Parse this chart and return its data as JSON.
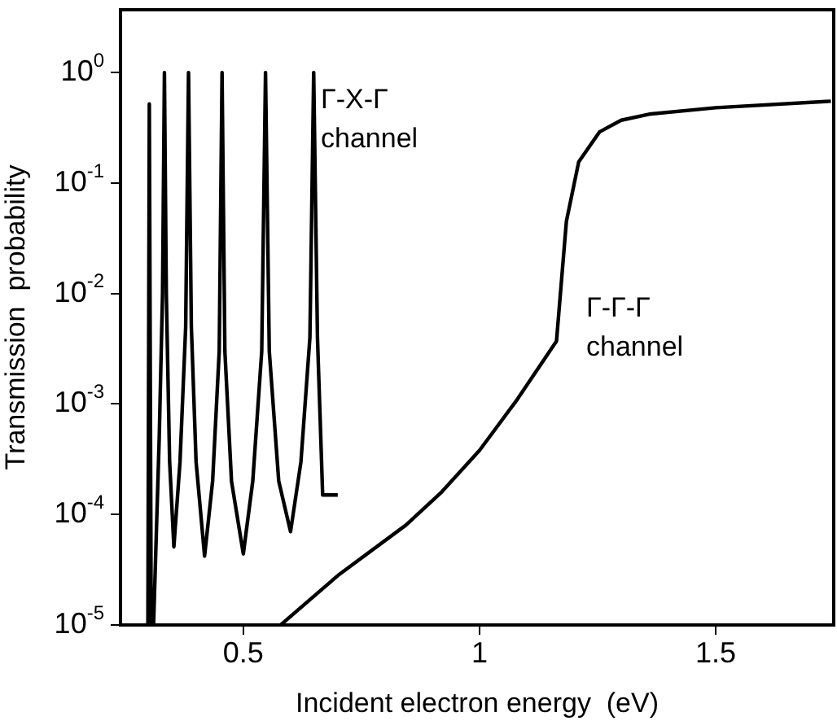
{
  "chart_data": {
    "type": "line",
    "xlabel": "Incident electron energy  (eV)",
    "ylabel": "Transmission  probability",
    "log": "y",
    "grid": false,
    "legend": false,
    "marker": "none",
    "line_style": "solid",
    "xlim": [
      0.24,
      1.75
    ],
    "xticks": [
      0.5,
      1.0,
      1.5
    ],
    "ylim": [
      1e-05,
      3.7
    ],
    "yticks": [
      {
        "value": 1e-05,
        "label": "10$^{-5}$"
      },
      {
        "value": 0.0001,
        "label": "10$^{-4}$"
      },
      {
        "value": 0.001,
        "label": "10$^{-3}$"
      },
      {
        "value": 0.01,
        "label": "10$^{-2}$"
      },
      {
        "value": 0.1,
        "label": "10$^{-1}$"
      },
      {
        "value": 1,
        "label": "10$^{0}$"
      }
    ],
    "series": [
      {
        "color": "#000000",
        "x": [
          0.298,
          0.301,
          0.305,
          0.31,
          0.322,
          0.329,
          0.333,
          0.337,
          0.344,
          0.353,
          0.366,
          0.378,
          0.384,
          0.39,
          0.4,
          0.418,
          0.435,
          0.449,
          0.455,
          0.461,
          0.475,
          0.5,
          0.52,
          0.539,
          0.547,
          0.555,
          0.575,
          0.6,
          0.622,
          0.641,
          0.649,
          0.657,
          0.668,
          0.7
        ],
        "values": [
          1e-05,
          0.52,
          1e-05,
          1e-05,
          0.0005,
          0.01,
          1,
          0.01,
          0.0003,
          5.1e-05,
          0.0003,
          0.005,
          1,
          0.005,
          0.0003,
          4.2e-05,
          0.0002,
          0.003,
          1,
          0.003,
          0.0002,
          4.4e-05,
          0.0002,
          0.003,
          1,
          0.003,
          0.0002,
          7e-05,
          0.0003,
          0.004,
          1,
          0.004,
          0.00015,
          0.00015
        ]
      },
      {
        "color": "#000000",
        "x": [
          0.579,
          0.7,
          0.844,
          0.92,
          1.0,
          1.08,
          1.163,
          1.184,
          1.21,
          1.254,
          1.3,
          1.359,
          1.5,
          1.744
        ],
        "values": [
          1e-05,
          2.8e-05,
          8e-05,
          0.00016,
          0.00038,
          0.0011,
          0.0037,
          0.045,
          0.155,
          0.29,
          0.37,
          0.42,
          0.48,
          0.55
        ]
      }
    ],
    "annotations": [
      "Γ-X-Γ channel",
      "Γ-Γ-Γ channel"
    ]
  }
}
